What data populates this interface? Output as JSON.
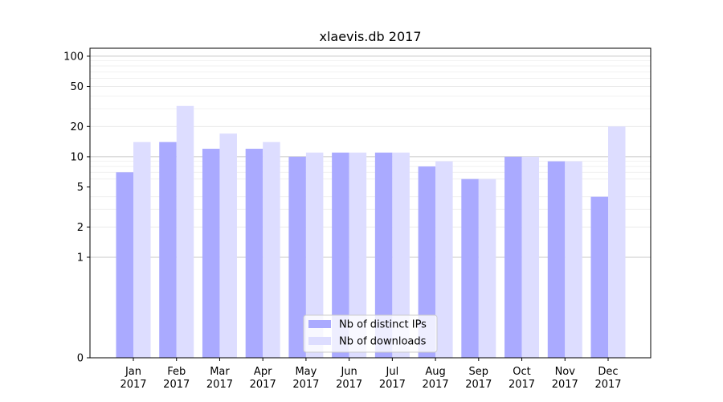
{
  "chart_data": {
    "type": "bar",
    "title": "xlaevis.db 2017",
    "xlabel": "",
    "ylabel": "",
    "y_scale": "symlog",
    "ylim": [
      0,
      120
    ],
    "y_ticks": [
      0,
      1,
      2,
      5,
      10,
      20,
      50,
      100
    ],
    "y_tick_labels": [
      "0",
      "1",
      "2",
      "5",
      "10",
      "20",
      "50",
      "100"
    ],
    "grid": true,
    "legend_position": "bottom-center",
    "categories": [
      [
        "Jan",
        "2017"
      ],
      [
        "Feb",
        "2017"
      ],
      [
        "Mar",
        "2017"
      ],
      [
        "Apr",
        "2017"
      ],
      [
        "May",
        "2017"
      ],
      [
        "Jun",
        "2017"
      ],
      [
        "Jul",
        "2017"
      ],
      [
        "Aug",
        "2017"
      ],
      [
        "Sep",
        "2017"
      ],
      [
        "Oct",
        "2017"
      ],
      [
        "Nov",
        "2017"
      ],
      [
        "Dec",
        "2017"
      ]
    ],
    "series": [
      {
        "name": "Nb of distinct IPs",
        "color": "#aaaaff",
        "values": [
          7,
          14,
          12,
          12,
          10,
          11,
          11,
          8,
          6,
          10,
          9,
          4
        ]
      },
      {
        "name": "Nb of downloads",
        "color": "#ddddff",
        "values": [
          14,
          32,
          17,
          14,
          11,
          11,
          11,
          9,
          6,
          10,
          9,
          20
        ]
      }
    ]
  }
}
